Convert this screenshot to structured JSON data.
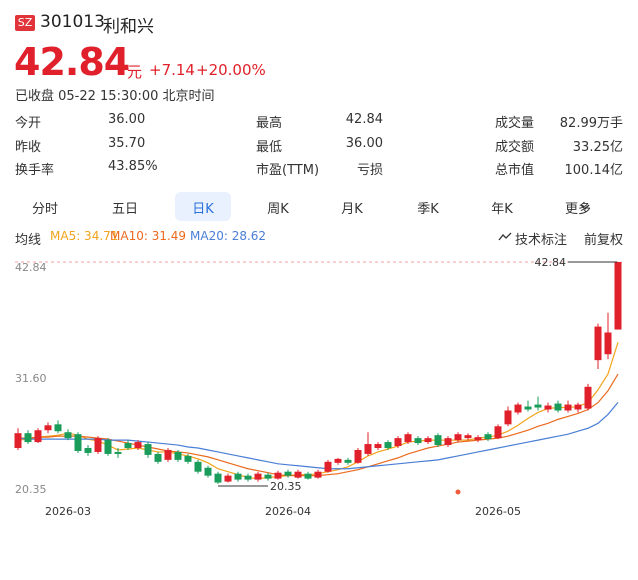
{
  "header": {
    "market": "SZ",
    "code": "301013",
    "name": "利和兴",
    "price": "42.84",
    "unit": "元",
    "change": "+7.14",
    "pct": "+20.00%",
    "status": "已收盘 05-22 15:30:00 北京时间"
  },
  "stats": [
    [
      {
        "label": "今开",
        "value": "36.00"
      },
      {
        "label": "最高",
        "value": "42.84"
      },
      {
        "label": "成交量",
        "value": "82.99万手"
      }
    ],
    [
      {
        "label": "昨收",
        "value": "35.70"
      },
      {
        "label": "最低",
        "value": "36.00"
      },
      {
        "label": "成交额",
        "value": "33.25亿"
      }
    ],
    [
      {
        "label": "换手率",
        "value": "43.85%"
      },
      {
        "label": "市盈(TTM)",
        "value": "亏损"
      },
      {
        "label": "总市值",
        "value": "100.14亿"
      }
    ]
  ],
  "tabs": [
    "分时",
    "五日",
    "日K",
    "周K",
    "月K",
    "季K",
    "年K",
    "更多"
  ],
  "selected_tab": "日K",
  "toolbar": {
    "ma": "均线",
    "mark": "技术标注",
    "adjust": "前复权"
  },
  "chart_data": {
    "type": "candlestick",
    "categories": [
      null,
      null,
      null,
      null,
      null,
      "2026-03",
      null,
      null,
      null,
      null,
      null,
      null,
      null,
      null,
      null,
      null,
      null,
      null,
      null,
      null,
      null,
      null,
      null,
      null,
      null,
      null,
      null,
      "2026-04",
      null,
      null,
      null,
      null,
      null,
      null,
      null,
      null,
      null,
      null,
      null,
      null,
      null,
      null,
      null,
      null,
      null,
      null,
      null,
      null,
      "2026-05",
      null,
      null,
      null,
      null,
      null,
      null,
      null,
      null,
      null,
      null,
      null,
      null
    ],
    "open": [
      24.0,
      25.5,
      24.6,
      25.8,
      26.4,
      25.6,
      25.4,
      24.0,
      23.6,
      24.8,
      23.6,
      24.5,
      24.0,
      24.4,
      23.4,
      22.8,
      23.6,
      23.2,
      22.6,
      22.0,
      21.4,
      20.6,
      21.4,
      21.2,
      20.8,
      21.3,
      20.9,
      21.6,
      21.0,
      21.4,
      21.0,
      21.6,
      22.5,
      22.8,
      22.5,
      23.4,
      24.0,
      24.6,
      24.2,
      24.6,
      25.0,
      24.6,
      25.3,
      24.3,
      24.8,
      25.0,
      24.8,
      25.4,
      25.0,
      26.4,
      27.6,
      28.2,
      28.4,
      27.9,
      28.5,
      27.8,
      27.9,
      28.0,
      32.9,
      33.5,
      36.0
    ],
    "high": [
      26.0,
      25.8,
      26.0,
      26.6,
      26.8,
      25.9,
      25.6,
      24.3,
      25.2,
      25.0,
      24.0,
      24.8,
      24.8,
      24.6,
      23.6,
      24.0,
      23.8,
      23.4,
      22.8,
      22.2,
      21.6,
      21.4,
      21.6,
      21.4,
      21.6,
      21.5,
      21.7,
      21.8,
      21.8,
      21.6,
      21.8,
      22.8,
      23.0,
      23.0,
      24.0,
      25.6,
      24.6,
      24.8,
      25.2,
      25.6,
      25.2,
      25.2,
      25.5,
      25.2,
      25.6,
      25.5,
      25.3,
      25.6,
      26.4,
      28.2,
      28.6,
      28.8,
      29.2,
      28.6,
      28.8,
      28.8,
      28.6,
      30.5,
      36.6,
      37.7,
      42.84
    ],
    "low": [
      23.8,
      24.4,
      24.5,
      25.5,
      25.5,
      24.8,
      23.5,
      23.2,
      23.4,
      23.2,
      23.0,
      23.8,
      23.8,
      23.0,
      22.4,
      22.6,
      22.6,
      22.4,
      21.4,
      21.0,
      20.35,
      20.5,
      20.6,
      20.6,
      20.6,
      20.7,
      20.8,
      21.0,
      20.9,
      20.8,
      20.9,
      21.5,
      22.3,
      22.3,
      22.4,
      23.2,
      23.8,
      23.8,
      24.0,
      24.4,
      24.3,
      24.4,
      24.1,
      24.1,
      24.6,
      24.8,
      24.6,
      24.7,
      24.9,
      26.2,
      27.4,
      27.7,
      27.8,
      27.6,
      27.6,
      27.6,
      27.6,
      27.8,
      32.0,
      33.0,
      36.0
    ],
    "close": [
      25.5,
      24.6,
      25.8,
      26.3,
      25.7,
      25.0,
      23.7,
      23.5,
      25.0,
      23.4,
      23.4,
      24.0,
      24.6,
      23.3,
      22.6,
      23.8,
      22.8,
      22.6,
      21.6,
      21.2,
      20.5,
      21.2,
      20.8,
      20.8,
      21.4,
      20.9,
      21.5,
      21.2,
      21.6,
      20.9,
      21.6,
      22.6,
      22.9,
      22.5,
      23.8,
      24.4,
      24.4,
      24.0,
      25.0,
      25.4,
      24.5,
      25.0,
      24.3,
      25.0,
      25.4,
      25.3,
      25.1,
      24.9,
      26.2,
      27.8,
      28.4,
      27.9,
      28.1,
      28.3,
      27.8,
      28.4,
      28.4,
      30.2,
      36.3,
      35.7,
      42.84
    ],
    "up_color": "#e0202a",
    "down_color": "#1a9c5a",
    "series": [
      {
        "label": "MA5: 34.71",
        "color": "#f2a31b",
        "values": [
          24.8,
          24.9,
          25.1,
          25.2,
          25.3,
          25.5,
          25.3,
          24.9,
          24.7,
          24.3,
          23.8,
          23.9,
          24.0,
          23.8,
          23.6,
          23.6,
          23.4,
          23.2,
          22.9,
          22.5,
          21.9,
          21.6,
          21.3,
          21.0,
          20.9,
          21.0,
          21.1,
          21.2,
          21.3,
          21.3,
          21.4,
          21.6,
          21.8,
          22.1,
          22.6,
          23.2,
          23.6,
          23.9,
          24.2,
          24.6,
          24.7,
          24.8,
          24.8,
          24.8,
          24.8,
          24.8,
          25.0,
          25.1,
          25.3,
          25.7,
          26.3,
          27.0,
          27.6,
          28.0,
          28.1,
          28.1,
          28.2,
          28.6,
          29.9,
          31.5,
          34.71
        ]
      },
      {
        "label": "MA10: 31.49",
        "color": "#ea6a1e",
        "values": [
          25.0,
          25.0,
          25.1,
          25.1,
          25.2,
          25.2,
          25.2,
          25.1,
          25.0,
          24.9,
          24.7,
          24.5,
          24.3,
          24.1,
          23.9,
          23.7,
          23.6,
          23.5,
          23.3,
          23.1,
          22.8,
          22.5,
          22.2,
          21.9,
          21.7,
          21.5,
          21.3,
          21.2,
          21.2,
          21.2,
          21.2,
          21.3,
          21.4,
          21.6,
          21.8,
          22.1,
          22.4,
          22.7,
          23.0,
          23.4,
          23.7,
          24.0,
          24.2,
          24.4,
          24.6,
          24.7,
          24.8,
          24.9,
          25.0,
          25.2,
          25.5,
          25.8,
          26.2,
          26.5,
          26.9,
          27.2,
          27.5,
          27.9,
          28.6,
          29.8,
          31.49
        ]
      },
      {
        "label": "MA20: 28.62",
        "color": "#4a7fd6",
        "values": [
          25.0,
          24.9,
          24.9,
          24.9,
          24.9,
          24.9,
          24.9,
          24.9,
          24.9,
          24.8,
          24.8,
          24.8,
          24.7,
          24.6,
          24.5,
          24.4,
          24.3,
          24.1,
          24.0,
          23.8,
          23.6,
          23.4,
          23.2,
          23.0,
          22.8,
          22.6,
          22.4,
          22.3,
          22.2,
          22.1,
          22.0,
          21.9,
          21.9,
          21.9,
          22.0,
          22.1,
          22.2,
          22.3,
          22.4,
          22.5,
          22.6,
          22.7,
          22.8,
          23.0,
          23.2,
          23.4,
          23.6,
          23.8,
          24.0,
          24.2,
          24.4,
          24.6,
          24.8,
          25.0,
          25.2,
          25.4,
          25.7,
          26.0,
          26.5,
          27.4,
          28.62
        ]
      }
    ],
    "ylim": [
      19.24,
      43.55
    ],
    "yticks": [
      42.84,
      {
        "value": 31.6,
        "label": "31.60"
      },
      20.35
    ],
    "max_mark": 42.84,
    "min_mark": 20.35
  }
}
